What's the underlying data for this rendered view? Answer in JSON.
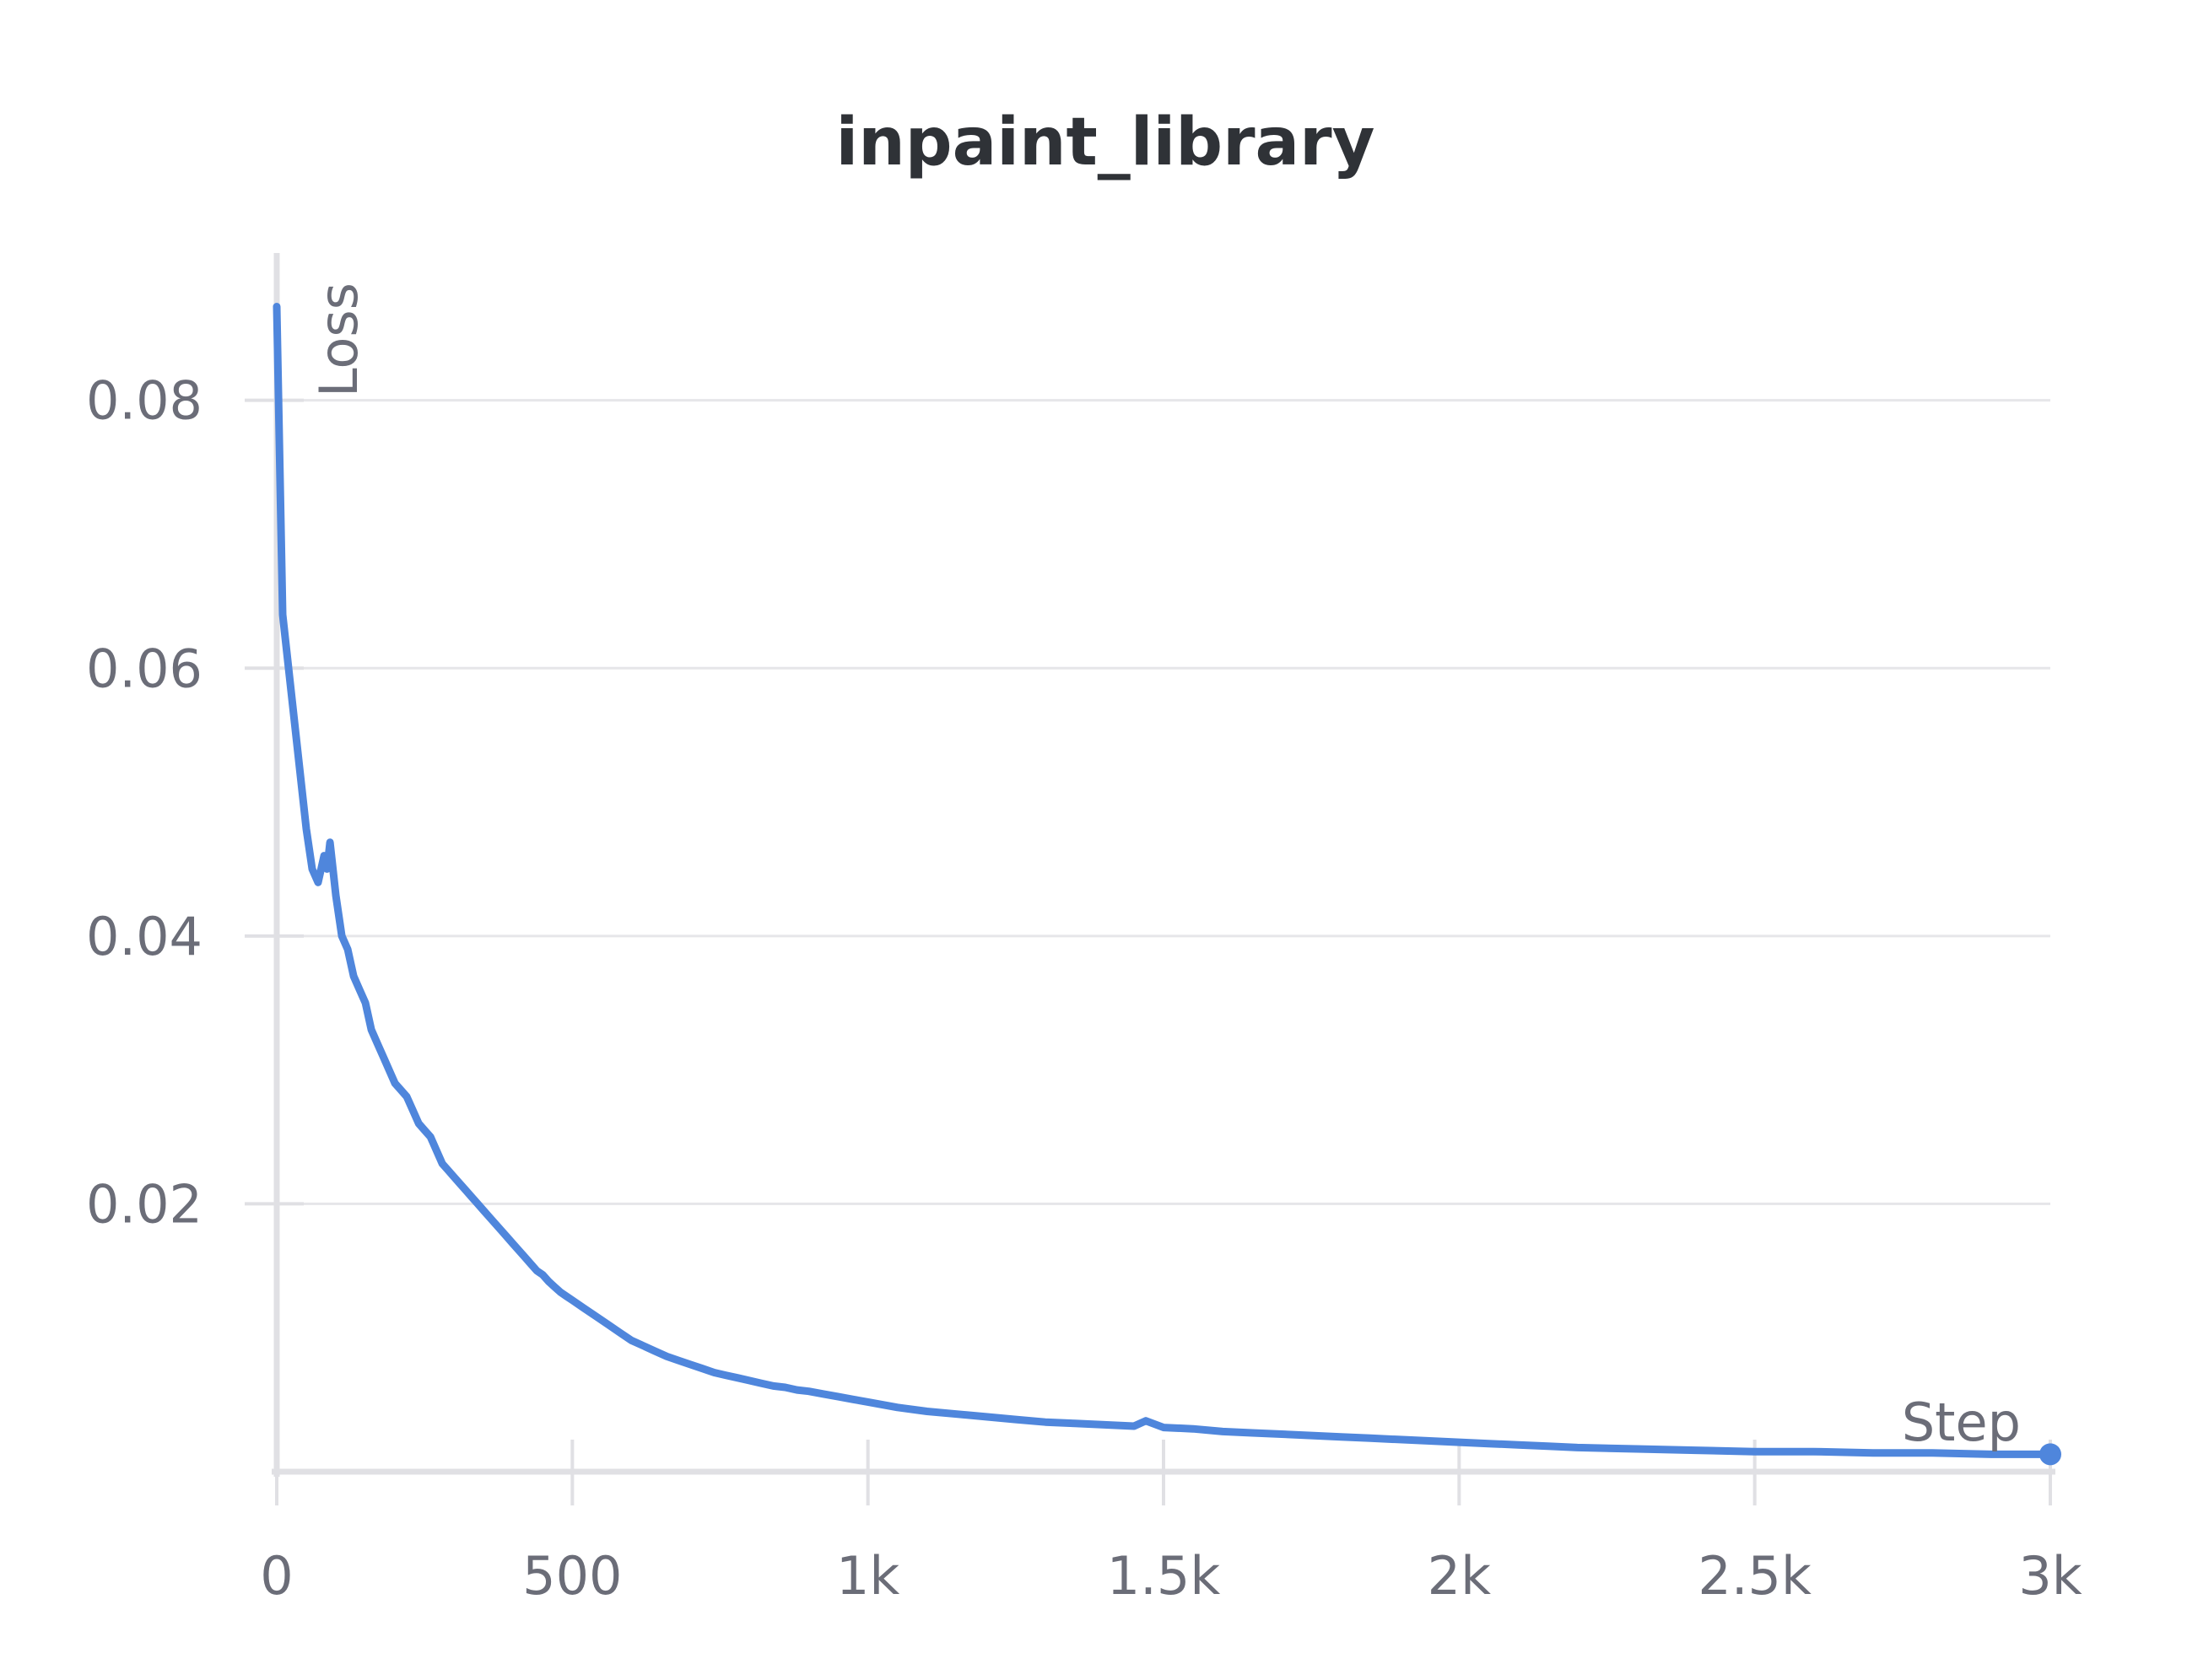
{
  "colors": {
    "series": "#4f86dc",
    "grid": "#e6e6e9",
    "axis": "#e0e0e4",
    "text": "#6b6d78",
    "title": "#2f3237"
  },
  "chart_data": {
    "type": "line",
    "title": "inpaint_library",
    "xlabel": "Step",
    "ylabel": "Loss",
    "xlim": [
      0,
      3000
    ],
    "ylim": [
      0.0,
      0.091
    ],
    "grid": true,
    "x_ticks": [
      {
        "value": 0,
        "label": "0"
      },
      {
        "value": 500,
        "label": "500"
      },
      {
        "value": 1000,
        "label": "1k"
      },
      {
        "value": 1500,
        "label": "1.5k"
      },
      {
        "value": 2000,
        "label": "2k"
      },
      {
        "value": 2500,
        "label": "2.5k"
      },
      {
        "value": 3000,
        "label": "3k"
      }
    ],
    "y_ticks": [
      {
        "value": 0.02,
        "label": "0.02"
      },
      {
        "value": 0.04,
        "label": "0.04"
      },
      {
        "value": 0.06,
        "label": "0.06"
      },
      {
        "value": 0.08,
        "label": "0.08"
      }
    ],
    "series": [
      {
        "x": [
          0,
          10,
          20,
          35,
          50,
          60,
          70,
          80,
          85,
          90,
          100,
          110,
          120,
          130,
          140,
          150,
          160,
          170,
          180,
          190,
          200,
          210,
          220,
          230,
          240,
          250,
          260,
          270,
          280,
          290,
          300,
          310,
          320,
          330,
          340,
          350,
          360,
          370,
          380,
          390,
          400,
          410,
          420,
          430,
          440,
          450,
          460,
          470,
          480,
          490,
          500,
          520,
          540,
          560,
          580,
          600,
          620,
          640,
          660,
          680,
          700,
          720,
          740,
          760,
          780,
          800,
          820,
          840,
          860,
          880,
          900,
          925,
          950,
          975,
          1000,
          1050,
          1100,
          1150,
          1200,
          1250,
          1300,
          1350,
          1400,
          1450,
          1470,
          1500,
          1550,
          1600,
          1650,
          1700,
          1750,
          1800,
          1850,
          1900,
          1950,
          2000,
          2050,
          2100,
          2150,
          2200,
          2300,
          2400,
          2500,
          2600,
          2700,
          2800,
          2900,
          3000
        ],
        "y": [
          0.087,
          0.064,
          0.06,
          0.054,
          0.048,
          0.045,
          0.044,
          0.046,
          0.045,
          0.047,
          0.043,
          0.04,
          0.039,
          0.037,
          0.036,
          0.035,
          0.033,
          0.032,
          0.031,
          0.03,
          0.029,
          0.0285,
          0.028,
          0.027,
          0.026,
          0.0255,
          0.025,
          0.024,
          0.023,
          0.0225,
          0.022,
          0.0215,
          0.021,
          0.0205,
          0.02,
          0.0195,
          0.019,
          0.0185,
          0.018,
          0.0175,
          0.017,
          0.0165,
          0.016,
          0.0155,
          0.015,
          0.0147,
          0.0142,
          0.0138,
          0.0134,
          0.0131,
          0.0128,
          0.0122,
          0.0116,
          0.011,
          0.0104,
          0.0098,
          0.0094,
          0.009,
          0.0086,
          0.0083,
          0.008,
          0.0077,
          0.0074,
          0.0072,
          0.007,
          0.0068,
          0.0066,
          0.0064,
          0.0063,
          0.0061,
          0.006,
          0.0058,
          0.0056,
          0.0054,
          0.0052,
          0.0048,
          0.0045,
          0.0043,
          0.0041,
          0.0039,
          0.0037,
          0.0036,
          0.0035,
          0.0034,
          0.0038,
          0.0033,
          0.0032,
          0.003,
          0.0029,
          0.0028,
          0.0027,
          0.0026,
          0.0025,
          0.0024,
          0.0023,
          0.0022,
          0.0021,
          0.002,
          0.0019,
          0.0018,
          0.0017,
          0.0016,
          0.0015,
          0.0015,
          0.0014,
          0.0014,
          0.0013,
          0.0013
        ]
      }
    ]
  }
}
